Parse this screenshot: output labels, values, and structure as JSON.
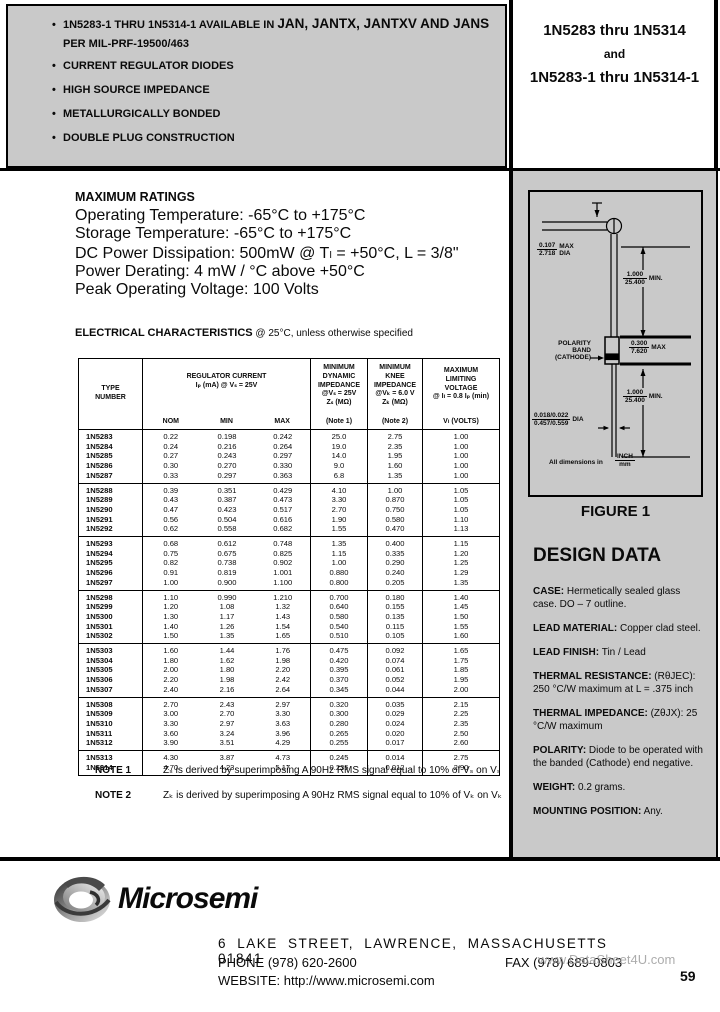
{
  "colors": {
    "panel_grey": "#c9c9c9",
    "watermark_grey": "#9e9e9e"
  },
  "features": {
    "bullet": "•",
    "line1_prefix": "1N5283-1 THRU 1N5314-1 AVAILABLE IN",
    "line1_emphasis": "JAN, JANTX, JANTXV AND JANS",
    "line2": "PER MIL-PRF-19500/463",
    "items": [
      "CURRENT REGULATOR DIODES",
      "HIGH SOURCE IMPEDANCE",
      "METALLURGICALLY BONDED",
      "DOUBLE PLUG CONSTRUCTION"
    ]
  },
  "title": {
    "line1": "1N5283 thru 1N5314",
    "line2": "and",
    "line3": "1N5283-1 thru 1N5314-1"
  },
  "max_ratings": {
    "title": "MAXIMUM RATINGS",
    "lines": [
      "Operating Temperature: -65°C to +175°C",
      "Storage Temperature: -65°C to +175°C",
      "DC Power Dissipation: 500mW @ Tₗ = +50°C, L = 3/8\"",
      "Power Derating: 4 mW / °C above +50°C",
      "Peak Operating Voltage: 100 Volts"
    ]
  },
  "elec_char": {
    "title": "ELECTRICAL CHARACTERISTICS",
    "suffix": " @ 25°C, unless otherwise specified"
  },
  "table": {
    "headers": {
      "type": [
        "TYPE",
        "NUMBER"
      ],
      "reg_l1": "REGULATOR CURRENT",
      "reg_l2": "Iₚ (mA) @ Vₛ = 25V",
      "reg_sub": [
        "NOM",
        "MIN",
        "MAX"
      ],
      "zs": [
        "MINIMUM",
        "DYNAMIC",
        "IMPEDANCE",
        "@Vₛ = 25V",
        "Zₛ (MΩ)"
      ],
      "zs_note": "(Note 1)",
      "zk": [
        "MINIMUM",
        "KNEE",
        "IMPEDANCE",
        "@Vₖ = 6.0 V",
        "Zₖ (MΩ)"
      ],
      "zk_note": "(Note 2)",
      "vl": [
        "MAXIMUM",
        "LIMITING",
        "VOLTAGE",
        "@ Iₗ = 0.8 Iₚ (min)"
      ],
      "vl_unit": "Vₗ (VOLTS)"
    },
    "groups": [
      [
        [
          "1N5283",
          "0.22",
          "0.198",
          "0.242",
          "25.0",
          "2.75",
          "1.00"
        ],
        [
          "1N5284",
          "0.24",
          "0.216",
          "0.264",
          "19.0",
          "2.35",
          "1.00"
        ],
        [
          "1N5285",
          "0.27",
          "0.243",
          "0.297",
          "14.0",
          "1.95",
          "1.00"
        ],
        [
          "1N5286",
          "0.30",
          "0.270",
          "0.330",
          "9.0",
          "1.60",
          "1.00"
        ],
        [
          "1N5287",
          "0.33",
          "0.297",
          "0.363",
          "6.8",
          "1.35",
          "1.00"
        ]
      ],
      [
        [
          "1N5288",
          "0.39",
          "0.351",
          "0.429",
          "4.10",
          "1.00",
          "1.05"
        ],
        [
          "1N5289",
          "0.43",
          "0.387",
          "0.473",
          "3.30",
          "0.870",
          "1.05"
        ],
        [
          "1N5290",
          "0.47",
          "0.423",
          "0.517",
          "2.70",
          "0.750",
          "1.05"
        ],
        [
          "1N5291",
          "0.56",
          "0.504",
          "0.616",
          "1.90",
          "0.580",
          "1.10"
        ],
        [
          "1N5292",
          "0.62",
          "0.558",
          "0.682",
          "1.55",
          "0.470",
          "1.13"
        ]
      ],
      [
        [
          "1N5293",
          "0.68",
          "0.612",
          "0.748",
          "1.35",
          "0.400",
          "1.15"
        ],
        [
          "1N5294",
          "0.75",
          "0.675",
          "0.825",
          "1.15",
          "0.335",
          "1.20"
        ],
        [
          "1N5295",
          "0.82",
          "0.738",
          "0.902",
          "1.00",
          "0.290",
          "1.25"
        ],
        [
          "1N5296",
          "0.91",
          "0.819",
          "1.001",
          "0.880",
          "0.240",
          "1.29"
        ],
        [
          "1N5297",
          "1.00",
          "0.900",
          "1.100",
          "0.800",
          "0.205",
          "1.35"
        ]
      ],
      [
        [
          "1N5298",
          "1.10",
          "0.990",
          "1.210",
          "0.700",
          "0.180",
          "1.40"
        ],
        [
          "1N5299",
          "1.20",
          "1.08",
          "1.32",
          "0.640",
          "0.155",
          "1.45"
        ],
        [
          "1N5300",
          "1.30",
          "1.17",
          "1.43",
          "0.580",
          "0.135",
          "1.50"
        ],
        [
          "1N5301",
          "1.40",
          "1.26",
          "1.54",
          "0.540",
          "0.115",
          "1.55"
        ],
        [
          "1N5302",
          "1.50",
          "1.35",
          "1.65",
          "0.510",
          "0.105",
          "1.60"
        ]
      ],
      [
        [
          "1N5303",
          "1.60",
          "1.44",
          "1.76",
          "0.475",
          "0.092",
          "1.65"
        ],
        [
          "1N5304",
          "1.80",
          "1.62",
          "1.98",
          "0.420",
          "0.074",
          "1.75"
        ],
        [
          "1N5305",
          "2.00",
          "1.80",
          "2.20",
          "0.395",
          "0.061",
          "1.85"
        ],
        [
          "1N5306",
          "2.20",
          "1.98",
          "2.42",
          "0.370",
          "0.052",
          "1.95"
        ],
        [
          "1N5307",
          "2.40",
          "2.16",
          "2.64",
          "0.345",
          "0.044",
          "2.00"
        ]
      ],
      [
        [
          "1N5308",
          "2.70",
          "2.43",
          "2.97",
          "0.320",
          "0.035",
          "2.15"
        ],
        [
          "1N5309",
          "3.00",
          "2.70",
          "3.30",
          "0.300",
          "0.029",
          "2.25"
        ],
        [
          "1N5310",
          "3.30",
          "2.97",
          "3.63",
          "0.280",
          "0.024",
          "2.35"
        ],
        [
          "1N5311",
          "3.60",
          "3.24",
          "3.96",
          "0.265",
          "0.020",
          "2.50"
        ],
        [
          "1N5312",
          "3.90",
          "3.51",
          "4.29",
          "0.255",
          "0.017",
          "2.60"
        ]
      ],
      [
        [
          "1N5313",
          "4.30",
          "3.87",
          "4.73",
          "0.245",
          "0.014",
          "2.75"
        ],
        [
          "1N5314",
          "4.70",
          "4.23",
          "5.17",
          "0.235",
          "0.012",
          "2.90"
        ]
      ]
    ]
  },
  "notes": [
    {
      "label": "NOTE 1",
      "text": "Zₛ is derived by superimposing A 90Hz RMS signal equal to 10% of Vₛ on Vₛ"
    },
    {
      "label": "NOTE 2",
      "text": "Zₖ is derived by superimposing A 90Hz RMS signal equal to 10% of Vₖ on Vₖ"
    }
  ],
  "figure": {
    "caption": "FIGURE 1",
    "top_dia": {
      "num": "0.107",
      "den": "2.718",
      "suffix": "MAX DIA"
    },
    "upper_lead": {
      "num": "1.000",
      "den": "25.400",
      "suffix": "MIN."
    },
    "body": {
      "num": "0.300",
      "den": "7.620",
      "suffix": "MAX"
    },
    "polarity_lines": [
      "POLARITY",
      "BAND",
      "(CATHODE)"
    ],
    "lead_dia": {
      "num": "0.018/0.022",
      "den": "0.457/0.559",
      "suffix": "DIA"
    },
    "lower_lead": {
      "num": "1.000",
      "den": "25.400",
      "suffix": "MIN."
    },
    "dims_note": "All dimensions in",
    "dims_unit": {
      "num": "INCH",
      "den": "mm"
    }
  },
  "design_data": {
    "title": "DESIGN DATA",
    "items": [
      {
        "label": "CASE:",
        "text": "Hermetically sealed glass case. DO – 7 outline."
      },
      {
        "label": "LEAD MATERIAL:",
        "text": "Copper clad steel."
      },
      {
        "label": "LEAD FINISH:",
        "text": "Tin / Lead"
      },
      {
        "label": "THERMAL RESISTANCE:",
        "text": "(RθJEC): 250 °C/W maximum at L = .375 inch"
      },
      {
        "label": "THERMAL IMPEDANCE:",
        "text": "(ZθJX): 25 °C/W maximum"
      },
      {
        "label": "POLARITY:",
        "text": "Diode to be operated with the banded (Cathode) end negative."
      },
      {
        "label": "WEIGHT:",
        "text": "0.2 grams."
      },
      {
        "label": "MOUNTING POSITION:",
        "text": "Any."
      }
    ]
  },
  "footer": {
    "logo_text": "Microsemi",
    "address": "6 LAKE STREET, LAWRENCE, MASSACHUSETTS 01841",
    "phone": "PHONE (978) 620-2600",
    "fax": "FAX (978) 689-0803",
    "website": "WEBSITE: http://www.microsemi.com",
    "watermark": "www.DataSheet4U.com",
    "page_number": "59"
  }
}
